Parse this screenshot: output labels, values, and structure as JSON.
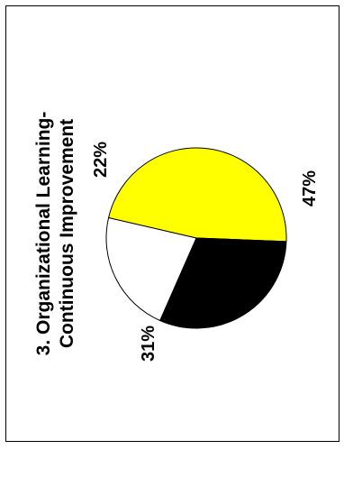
{
  "chart_data": {
    "type": "pie",
    "title_line1": "3. Organizational Learning-",
    "title_line2": "Continuous Improvement",
    "slices": [
      {
        "value": 47,
        "label": "47%",
        "color": "#ffff00"
      },
      {
        "value": 31,
        "label": "31%",
        "color": "#000000"
      },
      {
        "value": 22,
        "label": "22%",
        "color": "#ffffff"
      }
    ],
    "orientation": "rotated -90°"
  }
}
